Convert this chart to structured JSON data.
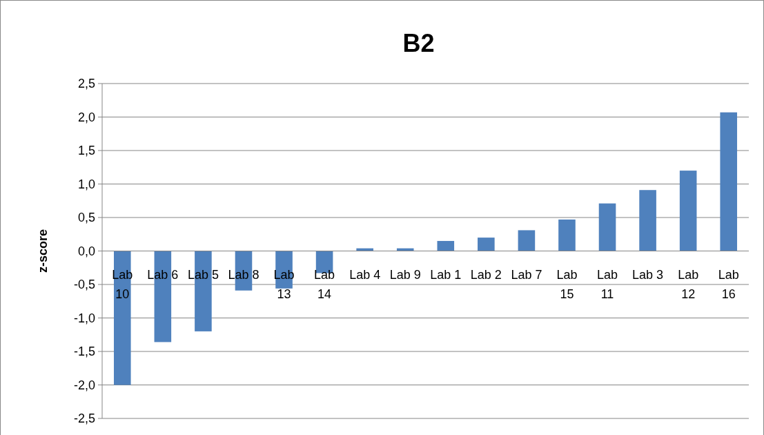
{
  "chart_data": {
    "type": "bar",
    "title": "B2",
    "ylabel": "z-score",
    "categories": [
      "Lab 10",
      "Lab 6",
      "Lab 5",
      "Lab 8",
      "Lab 13",
      "Lab 14",
      "Lab 4",
      "Lab 9",
      "Lab 1",
      "Lab 2",
      "Lab 7",
      "Lab 15",
      "Lab 11",
      "Lab 3",
      "Lab 12",
      "Lab 16"
    ],
    "values": [
      -2.0,
      -1.36,
      -1.2,
      -0.59,
      -0.56,
      -0.33,
      0.04,
      0.04,
      0.15,
      0.2,
      0.31,
      0.47,
      0.71,
      0.91,
      1.2,
      2.07
    ],
    "color": "#4f81bd",
    "ylim": [
      -2.5,
      2.5
    ],
    "yticks": [
      {
        "value": -2.5,
        "label": "-2,5"
      },
      {
        "value": -2,
        "label": "-2,0"
      },
      {
        "value": -1.5,
        "label": "-1,5"
      },
      {
        "value": -1,
        "label": "-1,0"
      },
      {
        "value": -0.5,
        "label": "-0,5"
      },
      {
        "value": 0,
        "label": "0,0"
      },
      {
        "value": 0.5,
        "label": "0,5"
      },
      {
        "value": 1,
        "label": "1,0"
      },
      {
        "value": 1.5,
        "label": "1,5"
      },
      {
        "value": 2,
        "label": "2,0"
      },
      {
        "value": 2.5,
        "label": "2,5"
      }
    ],
    "grid": "y"
  }
}
